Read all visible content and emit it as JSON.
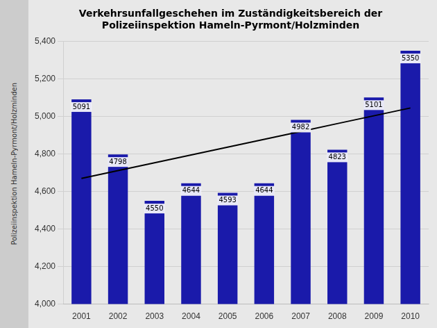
{
  "chart_data": {
    "type": "bar",
    "title": [
      "Verkehrsunfallgeschehen im Zuständigkeitsbereich der",
      "Polizeiinspektion Hameln-Pyrmont/Holzminden"
    ],
    "annotations": [
      "Polizeiinspektion Hameln-Pyrmont/Holzminden"
    ],
    "categories": [
      "2001",
      "2002",
      "2003",
      "2004",
      "2005",
      "2006",
      "2007",
      "2008",
      "2009",
      "2010"
    ],
    "series": [
      {
        "type": "bar",
        "color": "#1a1aaa",
        "values": [
          5091,
          4798,
          4550,
          4644,
          4593,
          4644,
          4982,
          4823,
          5101,
          5350
        ]
      },
      {
        "type": "line",
        "color": "#000000",
        "values": [
          4669.9091,
          4711.6182,
          4753.3273,
          4795.0364,
          4836.7455,
          4878.4545,
          4920.1636,
          4961.8727,
          5003.5818,
          5045.2909
        ]
      }
    ],
    "ylim": [
      4000,
      5400
    ],
    "yticks": [
      4000,
      4200,
      4400,
      4600,
      4800,
      5000,
      5200,
      5400
    ],
    "grid": true,
    "data_labels": true
  }
}
